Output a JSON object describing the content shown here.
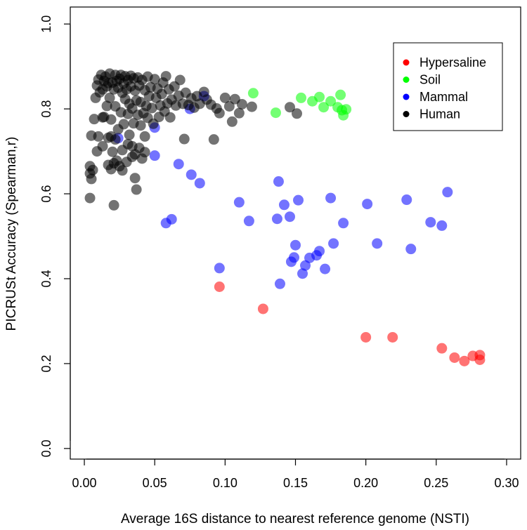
{
  "chart_data": {
    "type": "scatter",
    "title": "",
    "xlabel": "Average 16S distance to nearest reference genome (NSTI)",
    "ylabel": "PICRUSt Accuracy (Spearman,r)",
    "xlim": [
      -0.01,
      0.31
    ],
    "ylim": [
      -0.025,
      1.04
    ],
    "xticks": [
      0.0,
      0.05,
      0.1,
      0.15,
      0.2,
      0.25,
      0.3
    ],
    "xtick_labels": [
      "0.00",
      "0.05",
      "0.10",
      "0.15",
      "0.20",
      "0.25",
      "0.30"
    ],
    "yticks": [
      0.0,
      0.2,
      0.4,
      0.6,
      0.8,
      1.0
    ],
    "ytick_labels": [
      "0.0",
      "0.2",
      "0.4",
      "0.6",
      "0.8",
      "1.0"
    ],
    "grid": false,
    "legend_position": "top-right",
    "series": [
      {
        "name": "Hypersaline",
        "color": "#ff0000",
        "points": [
          [
            0.096,
            0.381
          ],
          [
            0.127,
            0.329
          ],
          [
            0.2,
            0.262
          ],
          [
            0.219,
            0.262
          ],
          [
            0.254,
            0.236
          ],
          [
            0.263,
            0.214
          ],
          [
            0.27,
            0.206
          ],
          [
            0.276,
            0.218
          ],
          [
            0.281,
            0.22
          ],
          [
            0.281,
            0.209
          ]
        ]
      },
      {
        "name": "Soil",
        "color": "#00ff00",
        "points": [
          [
            0.12,
            0.837
          ],
          [
            0.136,
            0.791
          ],
          [
            0.154,
            0.826
          ],
          [
            0.162,
            0.818
          ],
          [
            0.167,
            0.828
          ],
          [
            0.17,
            0.804
          ],
          [
            0.175,
            0.818
          ],
          [
            0.18,
            0.804
          ],
          [
            0.182,
            0.833
          ],
          [
            0.183,
            0.797
          ],
          [
            0.184,
            0.785
          ],
          [
            0.186,
            0.799
          ]
        ]
      },
      {
        "name": "Mammal",
        "color": "#0000ff",
        "points": [
          [
            0.05,
            0.69
          ],
          [
            0.05,
            0.756
          ],
          [
            0.058,
            0.531
          ],
          [
            0.062,
            0.54
          ],
          [
            0.067,
            0.67
          ],
          [
            0.076,
            0.645
          ],
          [
            0.082,
            0.625
          ],
          [
            0.096,
            0.425
          ],
          [
            0.11,
            0.58
          ],
          [
            0.117,
            0.536
          ],
          [
            0.137,
            0.541
          ],
          [
            0.138,
            0.629
          ],
          [
            0.139,
            0.388
          ],
          [
            0.142,
            0.574
          ],
          [
            0.146,
            0.546
          ],
          [
            0.147,
            0.44
          ],
          [
            0.149,
            0.45
          ],
          [
            0.15,
            0.479
          ],
          [
            0.152,
            0.585
          ],
          [
            0.155,
            0.412
          ],
          [
            0.157,
            0.431
          ],
          [
            0.16,
            0.449
          ],
          [
            0.165,
            0.455
          ],
          [
            0.167,
            0.465
          ],
          [
            0.171,
            0.423
          ],
          [
            0.175,
            0.59
          ],
          [
            0.177,
            0.483
          ],
          [
            0.184,
            0.531
          ],
          [
            0.201,
            0.576
          ],
          [
            0.208,
            0.483
          ],
          [
            0.229,
            0.586
          ],
          [
            0.232,
            0.47
          ],
          [
            0.246,
            0.533
          ],
          [
            0.254,
            0.525
          ],
          [
            0.258,
            0.604
          ],
          [
            0.024,
            0.731
          ],
          [
            0.085,
            0.83
          ],
          [
            0.075,
            0.8
          ]
        ]
      },
      {
        "name": "Human",
        "color": "#000000",
        "points": [
          [
            0.004,
            0.59
          ],
          [
            0.004,
            0.665
          ],
          [
            0.004,
            0.648
          ],
          [
            0.005,
            0.737
          ],
          [
            0.005,
            0.635
          ],
          [
            0.006,
            0.656
          ],
          [
            0.008,
            0.826
          ],
          [
            0.009,
            0.855
          ],
          [
            0.01,
            0.869
          ],
          [
            0.01,
            0.735
          ],
          [
            0.011,
            0.839
          ],
          [
            0.012,
            0.88
          ],
          [
            0.013,
            0.846
          ],
          [
            0.013,
            0.712
          ],
          [
            0.014,
            0.866
          ],
          [
            0.014,
            0.781
          ],
          [
            0.015,
            0.876
          ],
          [
            0.016,
            0.853
          ],
          [
            0.017,
            0.861
          ],
          [
            0.017,
            0.732
          ],
          [
            0.018,
            0.883
          ],
          [
            0.018,
            0.826
          ],
          [
            0.019,
            0.658
          ],
          [
            0.019,
            0.775
          ],
          [
            0.02,
            0.862
          ],
          [
            0.02,
            0.699
          ],
          [
            0.021,
            0.846
          ],
          [
            0.021,
            0.573
          ],
          [
            0.022,
            0.88
          ],
          [
            0.022,
            0.806
          ],
          [
            0.023,
            0.866
          ],
          [
            0.023,
            0.678
          ],
          [
            0.024,
            0.85
          ],
          [
            0.024,
            0.752
          ],
          [
            0.025,
            0.871
          ],
          [
            0.025,
            0.665
          ],
          [
            0.026,
            0.88
          ],
          [
            0.026,
            0.792
          ],
          [
            0.027,
            0.838
          ],
          [
            0.027,
            0.703
          ],
          [
            0.028,
            0.86
          ],
          [
            0.028,
            0.764
          ],
          [
            0.029,
            0.877
          ],
          [
            0.029,
            0.823
          ],
          [
            0.03,
            0.846
          ],
          [
            0.03,
            0.675
          ],
          [
            0.031,
            0.868
          ],
          [
            0.031,
            0.788
          ],
          [
            0.032,
            0.812
          ],
          [
            0.032,
            0.739
          ],
          [
            0.033,
            0.878
          ],
          [
            0.033,
            0.853
          ],
          [
            0.034,
            0.801
          ],
          [
            0.034,
            0.712
          ],
          [
            0.035,
            0.872
          ],
          [
            0.035,
            0.766
          ],
          [
            0.036,
            0.843
          ],
          [
            0.036,
            0.693
          ],
          [
            0.037,
            0.82
          ],
          [
            0.037,
            0.61
          ],
          [
            0.038,
            0.874
          ],
          [
            0.038,
            0.786
          ],
          [
            0.039,
            0.855
          ],
          [
            0.039,
            0.708
          ],
          [
            0.04,
            0.816
          ],
          [
            0.04,
            0.761
          ],
          [
            0.041,
            0.868
          ],
          [
            0.042,
            0.79
          ],
          [
            0.043,
            0.844
          ],
          [
            0.043,
            0.735
          ],
          [
            0.044,
            0.807
          ],
          [
            0.045,
            0.876
          ],
          [
            0.045,
            0.779
          ],
          [
            0.046,
            0.83
          ],
          [
            0.047,
            0.851
          ],
          [
            0.048,
            0.802
          ],
          [
            0.049,
            0.765
          ],
          [
            0.05,
            0.87
          ],
          [
            0.051,
            0.826
          ],
          [
            0.052,
            0.848
          ],
          [
            0.053,
            0.781
          ],
          [
            0.054,
            0.808
          ],
          [
            0.055,
            0.835
          ],
          [
            0.056,
            0.862
          ],
          [
            0.057,
            0.794
          ],
          [
            0.058,
            0.877
          ],
          [
            0.059,
            0.813
          ],
          [
            0.06,
            0.846
          ],
          [
            0.061,
            0.78
          ],
          [
            0.062,
            0.822
          ],
          [
            0.064,
            0.853
          ],
          [
            0.065,
            0.808
          ],
          [
            0.067,
            0.831
          ],
          [
            0.068,
            0.868
          ],
          [
            0.07,
            0.812
          ],
          [
            0.071,
            0.729
          ],
          [
            0.072,
            0.838
          ],
          [
            0.074,
            0.809
          ],
          [
            0.076,
            0.825
          ],
          [
            0.078,
            0.803
          ],
          [
            0.08,
            0.83
          ],
          [
            0.082,
            0.812
          ],
          [
            0.085,
            0.84
          ],
          [
            0.087,
            0.822
          ],
          [
            0.09,
            0.81
          ],
          [
            0.092,
            0.728
          ],
          [
            0.094,
            0.801
          ],
          [
            0.096,
            0.79
          ],
          [
            0.1,
            0.826
          ],
          [
            0.103,
            0.806
          ],
          [
            0.105,
            0.77
          ],
          [
            0.107,
            0.823
          ],
          [
            0.11,
            0.79
          ],
          [
            0.112,
            0.811
          ],
          [
            0.119,
            0.805
          ],
          [
            0.146,
            0.804
          ],
          [
            0.151,
            0.789
          ],
          [
            0.013,
            0.78
          ],
          [
            0.016,
            0.807
          ],
          [
            0.019,
            0.735
          ],
          [
            0.022,
            0.728
          ],
          [
            0.027,
            0.655
          ],
          [
            0.031,
            0.717
          ],
          [
            0.034,
            0.687
          ],
          [
            0.036,
            0.637
          ],
          [
            0.041,
            0.683
          ],
          [
            0.043,
            0.698
          ],
          [
            0.017,
            0.668
          ],
          [
            0.021,
            0.672
          ],
          [
            0.009,
            0.7
          ],
          [
            0.007,
            0.776
          ]
        ]
      }
    ]
  }
}
